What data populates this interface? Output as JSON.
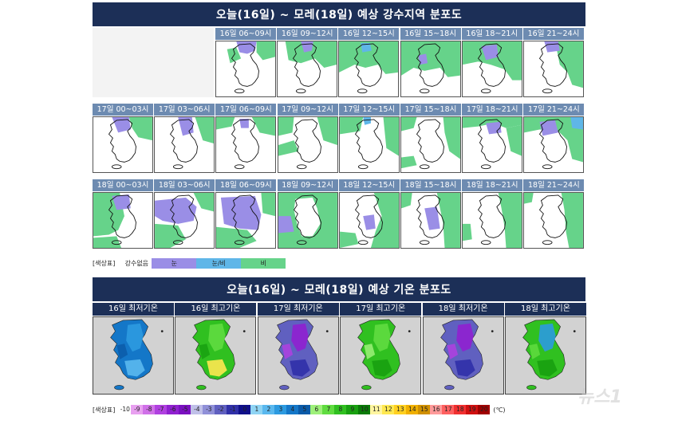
{
  "precip_section": {
    "title": "오늘(16일) ~ 모레(18일) 예상 강수지역 분포도",
    "rows": [
      {
        "cells": [
          {
            "label": "16일 06~09시",
            "pattern": "a"
          },
          {
            "label": "16일 09~12시",
            "pattern": "b"
          },
          {
            "label": "16일 12~15시",
            "pattern": "c"
          },
          {
            "label": "16일 15~18시",
            "pattern": "d"
          },
          {
            "label": "16일 18~21시",
            "pattern": "e"
          },
          {
            "label": "16일 21~24시",
            "pattern": "f"
          }
        ]
      },
      {
        "cells": [
          {
            "label": "17일 00~03시",
            "pattern": "g"
          },
          {
            "label": "17일 03~06시",
            "pattern": "h"
          },
          {
            "label": "17일 06~09시",
            "pattern": "i"
          },
          {
            "label": "17일 09~12시",
            "pattern": "j"
          },
          {
            "label": "17일 12~15시",
            "pattern": "k"
          },
          {
            "label": "17일 15~18시",
            "pattern": "l"
          },
          {
            "label": "17일 18~21시",
            "pattern": "m"
          },
          {
            "label": "17일 21~24시",
            "pattern": "n"
          }
        ]
      },
      {
        "cells": [
          {
            "label": "18일 00~03시",
            "pattern": "o"
          },
          {
            "label": "18일 03~06시",
            "pattern": "p"
          },
          {
            "label": "18일 06~09시",
            "pattern": "q"
          },
          {
            "label": "18일 09~12시",
            "pattern": "r"
          },
          {
            "label": "18일 12~15시",
            "pattern": "s"
          },
          {
            "label": "18일 15~18시",
            "pattern": "t"
          },
          {
            "label": "18일 18~21시",
            "pattern": "u"
          },
          {
            "label": "18일 21~24시",
            "pattern": "v"
          }
        ]
      }
    ],
    "legend": {
      "label": "[색상표]",
      "items": [
        {
          "text": "강수없음",
          "color": "#ffffff"
        },
        {
          "text": "눈",
          "color": "#9a8ee6"
        },
        {
          "text": "눈/비",
          "color": "#5fb6e8"
        },
        {
          "text": "비",
          "color": "#66d38a"
        }
      ]
    }
  },
  "temp_section": {
    "title": "오늘(16일) ~ 모레(18일) 예상 기온 분포도",
    "maps": [
      {
        "label": "16일 최저기온",
        "scheme": "cold-blue"
      },
      {
        "label": "16일 최고기온",
        "scheme": "warm"
      },
      {
        "label": "17일 최저기온",
        "scheme": "very-cold"
      },
      {
        "label": "17일 최고기온",
        "scheme": "mild"
      },
      {
        "label": "18일 최저기온",
        "scheme": "very-cold"
      },
      {
        "label": "18일 최고기온",
        "scheme": "mild-cool"
      }
    ],
    "legend": {
      "label": "[색상표]",
      "unit": "(℃)",
      "steps": [
        {
          "v": "-10",
          "c": "#ffffff"
        },
        {
          "v": "-9",
          "c": "#e8a0f0"
        },
        {
          "v": "-8",
          "c": "#d070e8"
        },
        {
          "v": "-7",
          "c": "#b040e0"
        },
        {
          "v": "-6",
          "c": "#9020d0"
        },
        {
          "v": "-5",
          "c": "#7a10c0"
        },
        {
          "v": "-4",
          "c": "#c0c0e8"
        },
        {
          "v": "-3",
          "c": "#9090d8"
        },
        {
          "v": "-2",
          "c": "#6060c0"
        },
        {
          "v": "-1",
          "c": "#3030a8"
        },
        {
          "v": "0",
          "c": "#10108a"
        },
        {
          "v": "1",
          "c": "#8fd4f4"
        },
        {
          "v": "2",
          "c": "#5ab8ee"
        },
        {
          "v": "3",
          "c": "#2c9ae0"
        },
        {
          "v": "4",
          "c": "#1477c8"
        },
        {
          "v": "5",
          "c": "#0a5aa8"
        },
        {
          "v": "6",
          "c": "#9ef07a"
        },
        {
          "v": "7",
          "c": "#60dc40"
        },
        {
          "v": "8",
          "c": "#30c020"
        },
        {
          "v": "9",
          "c": "#18a010"
        },
        {
          "v": "10",
          "c": "#0a7a08"
        },
        {
          "v": "11",
          "c": "#fff5a0"
        },
        {
          "v": "12",
          "c": "#ffe850"
        },
        {
          "v": "13",
          "c": "#ffd020"
        },
        {
          "v": "14",
          "c": "#f0b000"
        },
        {
          "v": "15",
          "c": "#d09000"
        },
        {
          "v": "16",
          "c": "#ff9a9a"
        },
        {
          "v": "17",
          "c": "#ff6060"
        },
        {
          "v": "18",
          "c": "#f03030"
        },
        {
          "v": "19",
          "c": "#d01010"
        },
        {
          "v": "20",
          "c": "#a00000"
        }
      ]
    }
  },
  "watermark": "뉴스1"
}
